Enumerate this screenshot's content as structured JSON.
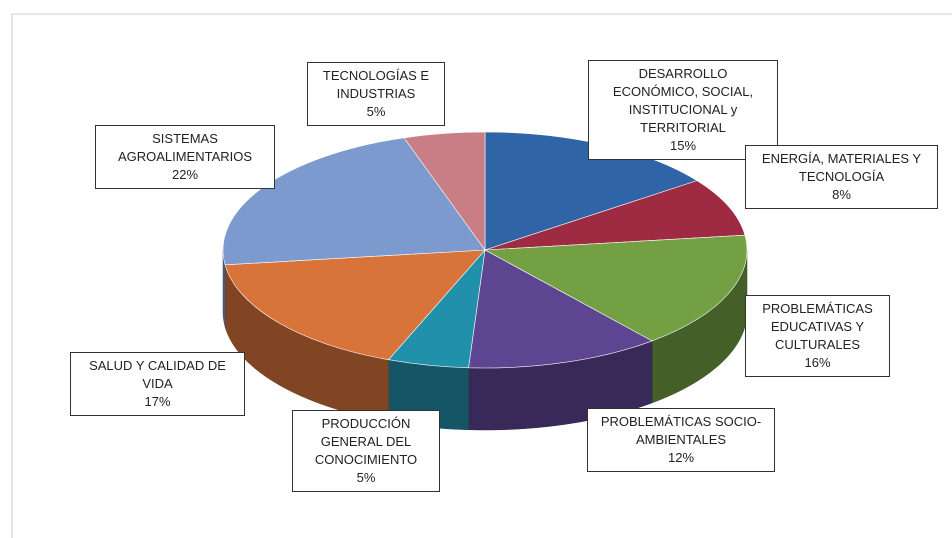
{
  "chart_data": {
    "type": "pie",
    "categories": [
      "DESARROLLO ECONÓMICO, SOCIAL, INSTITUCIONAL y TERRITORIAL",
      "ENERGÍA, MATERIALES Y TECNOLOGÍA",
      "PROBLEMÁTICAS EDUCATIVAS Y CULTURALES",
      "PROBLEMÁTICAS SOCIO-AMBIENTALES",
      "PRODUCCIÓN GENERAL DEL CONOCIMIENTO",
      "SALUD Y CALIDAD DE VIDA",
      "SISTEMAS AGROALIMENTARIOS",
      "TECNOLOGÍAS E INDUSTRIAS"
    ],
    "values": [
      15,
      8,
      16,
      12,
      5,
      17,
      22,
      5
    ],
    "value_labels": [
      "15%",
      "8%",
      "16%",
      "12%",
      "5%",
      "17%",
      "22%",
      "5%"
    ],
    "colors": [
      "#2f65a7",
      "#9e2b42",
      "#72a042",
      "#5e4592",
      "#2190aa",
      "#d8733a",
      "#7c9acd",
      "#c97e86"
    ]
  }
}
